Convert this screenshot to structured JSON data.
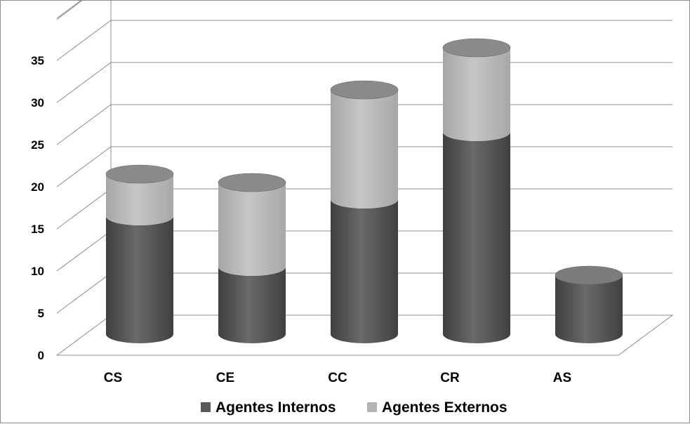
{
  "chart_data": {
    "type": "bar",
    "style": "stacked 3d cylinder",
    "title": "",
    "xlabel": "",
    "ylabel": "",
    "categories": [
      "CS",
      "CE",
      "CC",
      "CR",
      "AS"
    ],
    "series": [
      {
        "name": "Agentes Internos",
        "values": [
          14,
          8,
          16,
          24,
          7
        ],
        "color": "#5a5a5a"
      },
      {
        "name": "Agentes Externos",
        "values": [
          5,
          10,
          13,
          10,
          0
        ],
        "color": "#b4b4b4"
      }
    ],
    "ylim": [
      0,
      35
    ],
    "yticks": [
      0,
      5,
      10,
      15,
      20,
      25,
      30,
      35
    ],
    "grid": true,
    "legend_position": "bottom"
  }
}
